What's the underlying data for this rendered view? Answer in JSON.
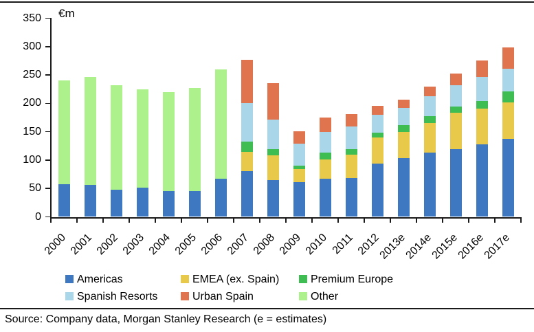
{
  "unit_label": "€m",
  "chart_data": {
    "type": "bar",
    "stacked": true,
    "title": "",
    "unit": "€m",
    "categories": [
      "2000",
      "2001",
      "2002",
      "2003",
      "2004",
      "2005",
      "2006",
      "2007",
      "2008",
      "2009",
      "2010",
      "2011",
      "2012",
      "2013e",
      "2014e",
      "2015e",
      "2016e",
      "2017e"
    ],
    "series": [
      {
        "name": "Americas",
        "color": "#3e78c0",
        "values": [
          58,
          56,
          48,
          52,
          45,
          46,
          67,
          81,
          65,
          61,
          67,
          69,
          94,
          104,
          113,
          119,
          128,
          138
        ]
      },
      {
        "name": "EMEA (ex. Spain)",
        "color": "#e9c949",
        "values": [
          0,
          0,
          0,
          0,
          0,
          0,
          0,
          34,
          43,
          23,
          34,
          40,
          46,
          46,
          52,
          64,
          63,
          64
        ]
      },
      {
        "name": "Premium Europe",
        "color": "#3ebd53",
        "values": [
          0,
          0,
          0,
          0,
          0,
          0,
          0,
          18,
          11,
          6,
          12,
          10,
          8,
          12,
          12,
          11,
          13,
          19
        ]
      },
      {
        "name": "Spanish Resorts",
        "color": "#aad6e9",
        "values": [
          0,
          0,
          0,
          0,
          0,
          0,
          0,
          67,
          52,
          39,
          36,
          40,
          32,
          30,
          36,
          38,
          42,
          40
        ]
      },
      {
        "name": "Urban Spain",
        "color": "#e0744e",
        "values": [
          0,
          0,
          0,
          0,
          0,
          0,
          0,
          77,
          65,
          22,
          26,
          22,
          16,
          15,
          17,
          20,
          29,
          37
        ]
      },
      {
        "name": "Other",
        "color": "#adf18c",
        "values": [
          182,
          190,
          184,
          173,
          175,
          181,
          193,
          0,
          0,
          0,
          0,
          0,
          0,
          0,
          0,
          0,
          0,
          0
        ]
      }
    ],
    "y_axis": {
      "min": 0,
      "max": 350,
      "step": 50,
      "tick_labels": [
        "0",
        "50",
        "100",
        "150",
        "200",
        "250",
        "300",
        "350"
      ]
    },
    "ylim": [
      0,
      350
    ],
    "grid": false,
    "legend_position": "bottom"
  },
  "legend": {
    "items": [
      {
        "label": "Americas",
        "color": "#3e78c0"
      },
      {
        "label": "EMEA (ex. Spain)",
        "color": "#e9c949"
      },
      {
        "label": "Premium Europe",
        "color": "#3ebd53"
      },
      {
        "label": "Spanish Resorts",
        "color": "#aad6e9"
      },
      {
        "label": "Urban Spain",
        "color": "#e0744e"
      },
      {
        "label": "Other",
        "color": "#adf18c"
      }
    ]
  },
  "source": {
    "text": "Source: Company data, Morgan Stanley Research (e = estimates)"
  }
}
